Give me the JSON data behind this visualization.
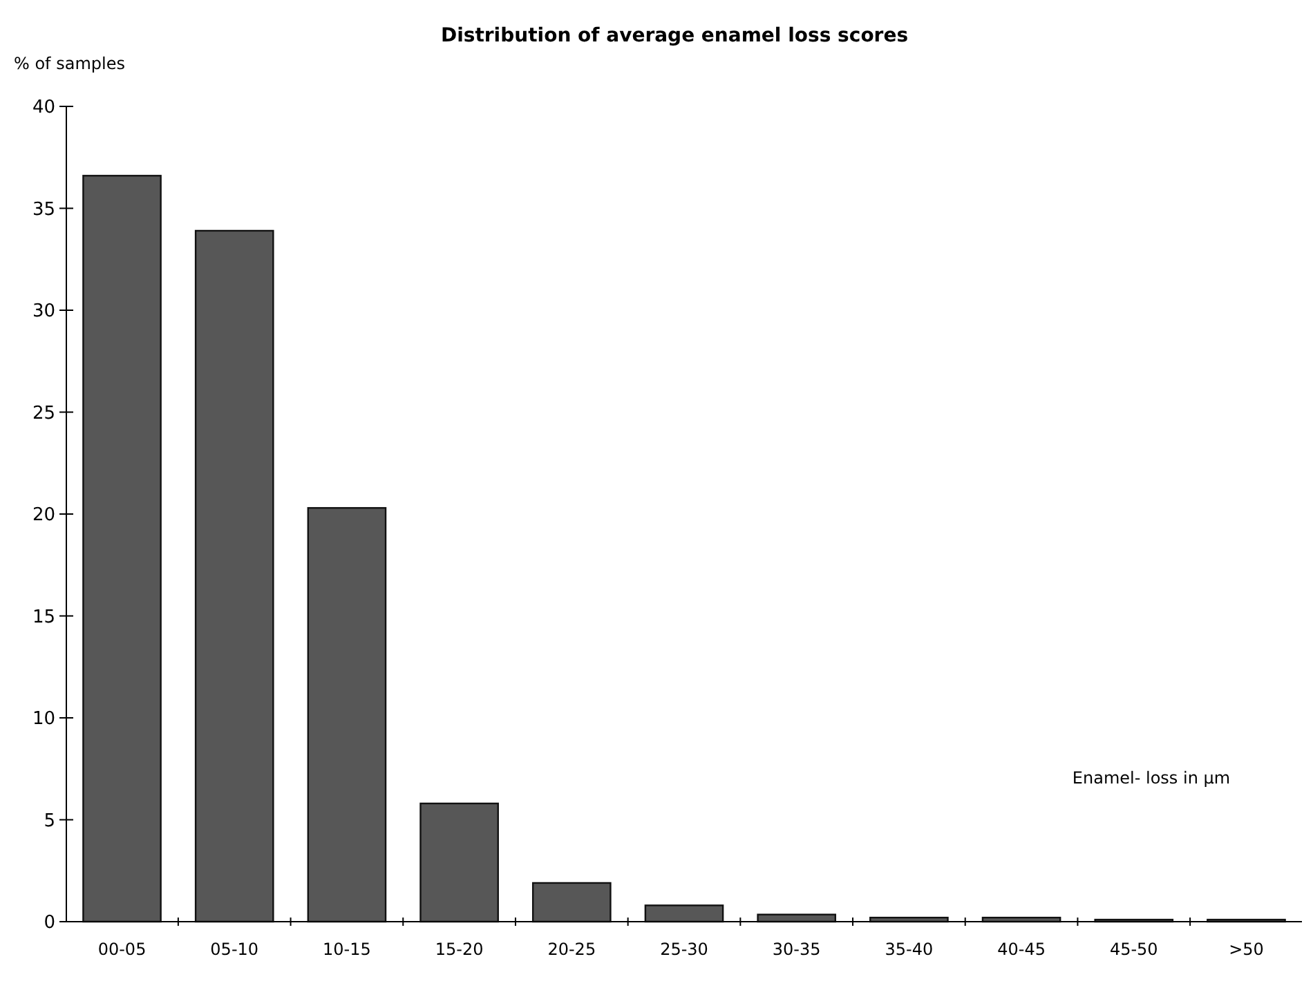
{
  "chart_data": {
    "type": "bar",
    "title": "Distribution of average enamel loss scores",
    "ylabel": "% of samples",
    "xlabel": "Enamel- loss in µm",
    "categories": [
      "00-05",
      "05-10",
      "10-15",
      "15-20",
      "20-25",
      "25-30",
      "30-35",
      "35-40",
      "40-45",
      "45-50",
      ">50"
    ],
    "values": [
      36.6,
      33.9,
      20.3,
      5.8,
      1.9,
      0.8,
      0.35,
      0.2,
      0.2,
      0.1,
      0.1
    ],
    "color": "#575757",
    "ylim": [
      0,
      40
    ],
    "yticks": [
      0,
      5,
      10,
      15,
      20,
      25,
      30,
      35,
      40
    ],
    "grid": false
  }
}
